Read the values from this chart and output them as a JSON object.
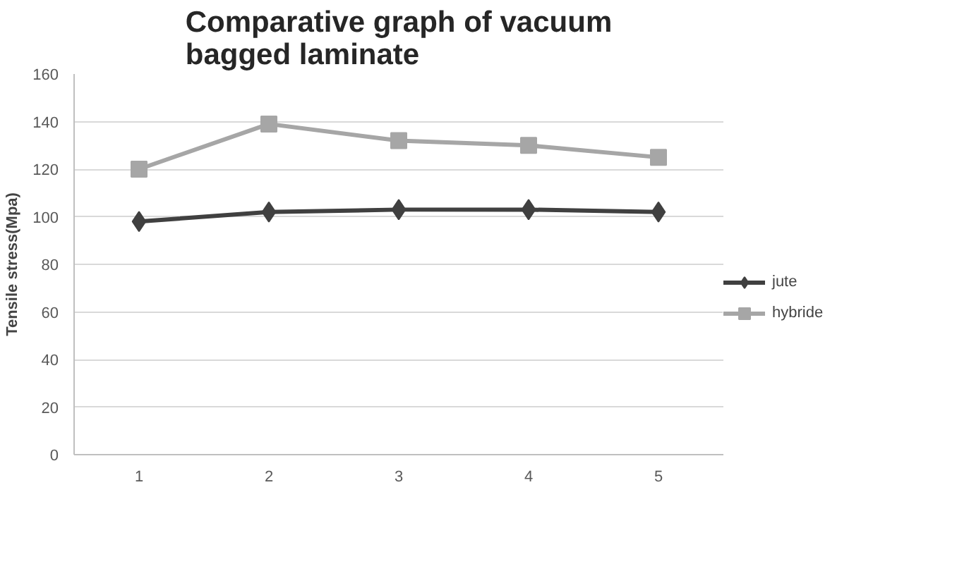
{
  "chart_data": {
    "type": "line",
    "title": "Comparative graph of vacuum bagged laminate",
    "ylabel": "Tensile stress(Mpa)",
    "categories": [
      "1",
      "2",
      "3",
      "4",
      "5"
    ],
    "series": [
      {
        "name": "jute",
        "color": "#404040",
        "marker": "diamond",
        "values": [
          98,
          102,
          103,
          103,
          102
        ]
      },
      {
        "name": "hybride",
        "color": "#a6a6a6",
        "marker": "square",
        "values": [
          120,
          139,
          132,
          130,
          125
        ]
      }
    ],
    "ylim": [
      0,
      160
    ],
    "yticks": [
      0,
      20,
      40,
      60,
      80,
      100,
      120,
      140,
      160
    ],
    "grid": "y",
    "legend": "right",
    "line_style": "solid"
  }
}
